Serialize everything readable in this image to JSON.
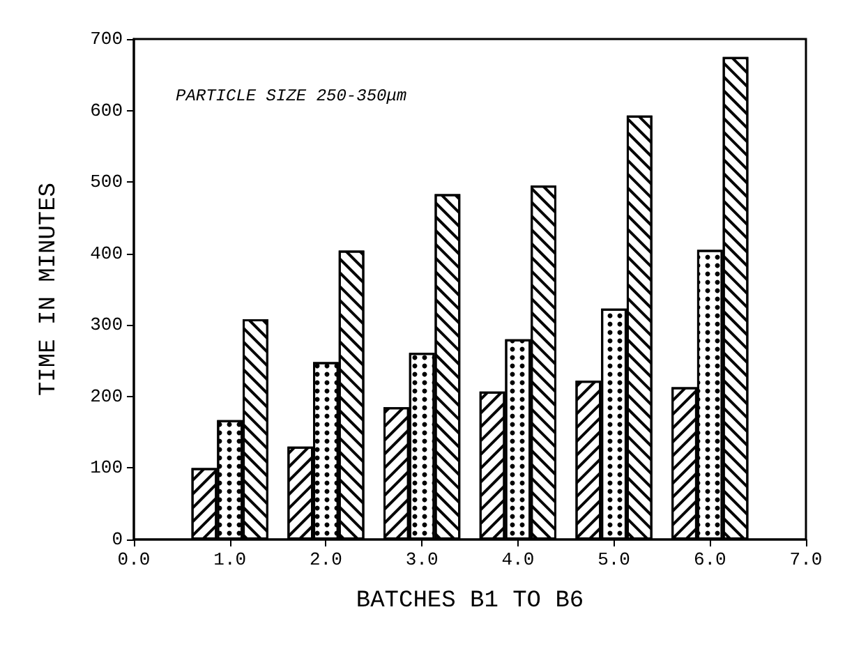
{
  "chart_data": {
    "type": "bar",
    "xlabel": "BATCHES B1 TO B6",
    "ylabel": "TIME IN MINUTES",
    "annotations": [
      "PARTICLE SIZE 250-350μm"
    ],
    "x": [
      1,
      2,
      3,
      4,
      5,
      6
    ],
    "series": [
      {
        "color": "#ffffff",
        "values": [
          100,
          130,
          185,
          207,
          222,
          213
        ]
      },
      {
        "color": "#ffffff",
        "values": [
          167,
          248,
          261,
          280,
          323,
          405
        ]
      },
      {
        "color": "#ffffff",
        "values": [
          308,
          404,
          483,
          495,
          593,
          675
        ]
      }
    ],
    "xlim": [
      0,
      7
    ],
    "xticks": [
      {
        "value": 0,
        "label": "0.0"
      },
      {
        "value": 1,
        "label": "1.0"
      },
      {
        "value": 2,
        "label": "2.0"
      },
      {
        "value": 3,
        "label": "3.0"
      },
      {
        "value": 4,
        "label": "4.0"
      },
      {
        "value": 5,
        "label": "5.0"
      },
      {
        "value": 6,
        "label": "6.0"
      },
      {
        "value": 7,
        "label": "7.0"
      }
    ],
    "ylim": [
      0,
      700
    ],
    "yticks": [
      0,
      100,
      200,
      300,
      400,
      500,
      600,
      700
    ],
    "grid": false
  }
}
